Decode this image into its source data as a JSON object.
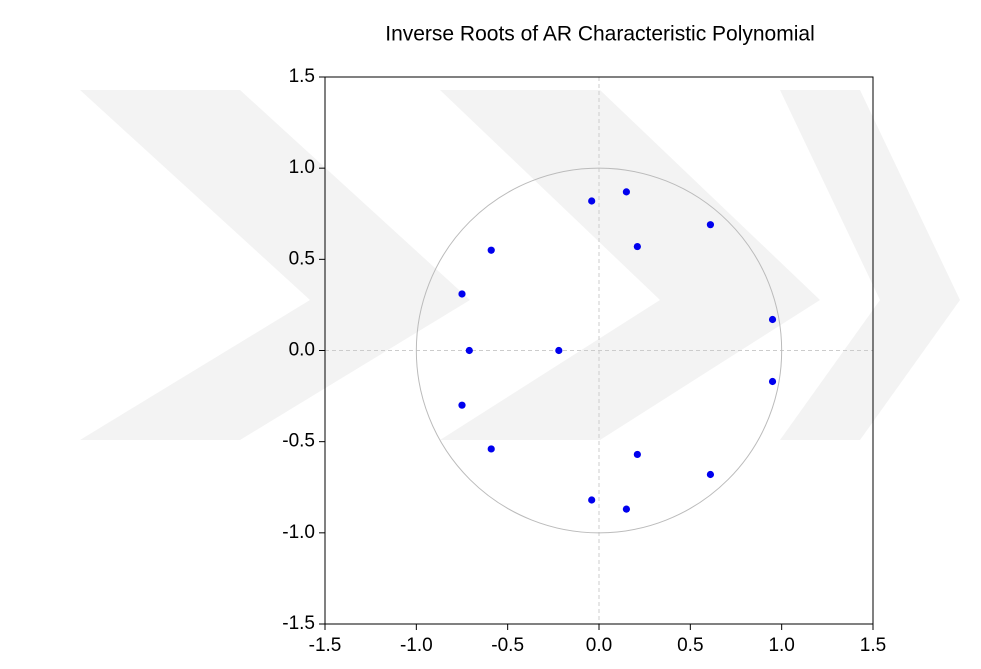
{
  "chart_data": {
    "type": "scatter",
    "title": "Inverse Roots of AR Characteristic Polynomial",
    "x": [
      -0.04,
      0.15,
      0.61,
      0.21,
      -0.59,
      -0.75,
      0.95,
      -0.71,
      -0.22,
      0.95,
      -0.75,
      -0.59,
      0.21,
      0.61,
      -0.04,
      0.15
    ],
    "values": [
      0.82,
      0.87,
      0.69,
      0.57,
      0.55,
      0.31,
      0.17,
      0.0,
      0.0,
      -0.17,
      -0.3,
      -0.54,
      -0.57,
      -0.68,
      -0.82,
      -0.87
    ],
    "color": "#0000ee",
    "xlim": [
      -1.5,
      1.5
    ],
    "ylim": [
      -1.5,
      1.5
    ],
    "xticks": [
      -1.5,
      {
        "value": -1,
        "label": "-1.0"
      },
      -0.5,
      {
        "value": 0,
        "label": "0.0"
      },
      0.5,
      {
        "value": 1,
        "label": "1.0"
      },
      1.5
    ],
    "yticks": [
      -1.5,
      {
        "value": -1,
        "label": "-1.0"
      },
      -0.5,
      {
        "value": 0,
        "label": "0.0"
      },
      0.5,
      {
        "value": 1,
        "label": "1.0"
      },
      1.5
    ],
    "unit_circle": true,
    "zero_lines": true
  }
}
